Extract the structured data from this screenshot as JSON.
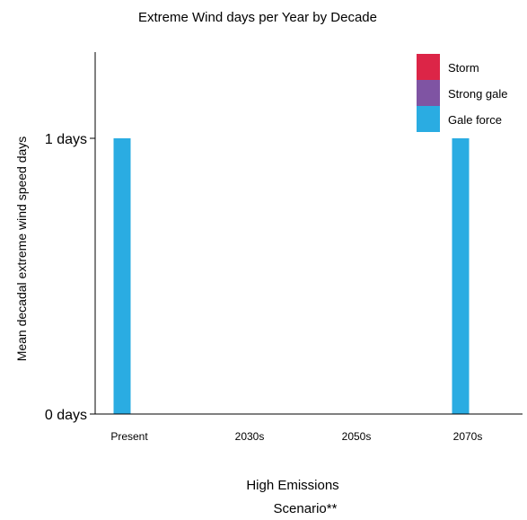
{
  "chart_data": {
    "type": "bar",
    "title": "Extreme Wind days per Year by Decade",
    "xlabel_lines": [
      "High Emissions",
      "Scenario**"
    ],
    "ylabel": "Mean decadal extreme wind speed days",
    "categories": [
      "Present",
      "2030s",
      "2050s",
      "2070s"
    ],
    "y_ticks": [
      {
        "value": 0,
        "label": "0 days"
      },
      {
        "value": 1,
        "label": "1 days"
      }
    ],
    "ylim": [
      0,
      1.3
    ],
    "stacked": true,
    "series": [
      {
        "name": "Gale force",
        "color": "#2AACE2",
        "values": [
          1,
          0,
          0,
          1
        ]
      },
      {
        "name": "Strong gale",
        "color": "#7F54A3",
        "values": [
          0,
          0,
          0,
          0
        ]
      },
      {
        "name": "Storm",
        "color": "#DC2547",
        "values": [
          0,
          0,
          0,
          0
        ]
      }
    ],
    "legend": {
      "placement": "top-right",
      "order": [
        "Storm",
        "Strong gale",
        "Gale force"
      ]
    },
    "grid": false
  }
}
